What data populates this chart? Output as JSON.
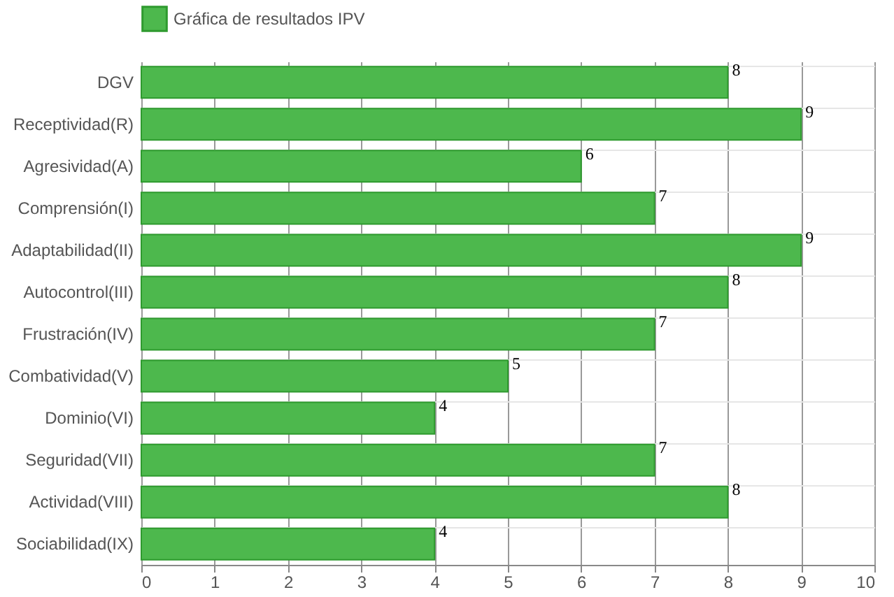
{
  "chart_data": {
    "type": "bar",
    "orientation": "horizontal",
    "categories": [
      "DGV",
      "Receptividad(R)",
      "Agresividad(A)",
      "Comprensión(I)",
      "Adaptabilidad(II)",
      "Autocontrol(III)",
      "Frustración(IV)",
      "Combatividad(V)",
      "Dominio(VI)",
      "Seguridad(VII)",
      "Actividad(VIII)",
      "Sociabilidad(IX)"
    ],
    "series": [
      {
        "name": "Gráfica de resultados IPV",
        "color": "#4db84d",
        "values": [
          8,
          9,
          6,
          7,
          9,
          8,
          7,
          5,
          4,
          7,
          8,
          4
        ]
      }
    ],
    "xlim": [
      0,
      10
    ],
    "xticks": [
      0,
      1,
      2,
      3,
      4,
      5,
      6,
      7,
      8,
      9,
      10
    ],
    "grid": true,
    "legend": "top",
    "data_labels": true
  }
}
